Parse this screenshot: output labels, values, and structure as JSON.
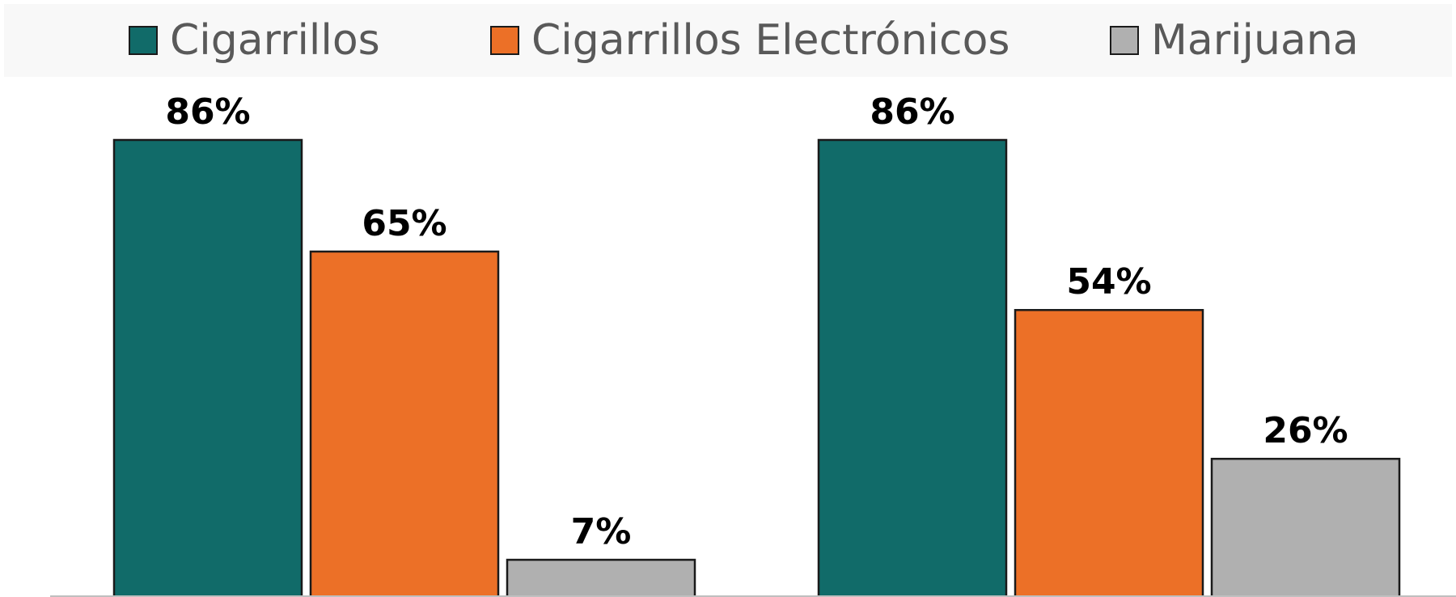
{
  "chart_data": {
    "type": "bar",
    "categories": [
      "",
      ""
    ],
    "series": [
      {
        "name": "Cigarrillos",
        "color": "#116b69",
        "values": [
          86,
          86
        ],
        "labels": [
          "86%",
          "86%"
        ]
      },
      {
        "name": "Cigarrillos Electrónicos",
        "color": "#ec7027",
        "values": [
          65,
          54
        ],
        "labels": [
          "65%",
          "54%"
        ]
      },
      {
        "name": "Marijuana",
        "color": "#b0b0b0",
        "values": [
          7,
          26
        ],
        "labels": [
          "7%",
          "26%"
        ]
      }
    ],
    "title": "",
    "xlabel": "",
    "ylabel": "",
    "ylim": [
      0,
      100
    ],
    "legend_position": "top",
    "grid": false
  }
}
